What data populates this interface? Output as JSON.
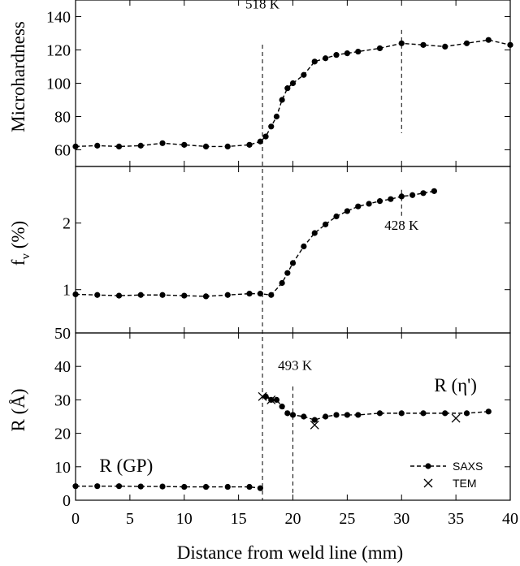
{
  "chart_data": {
    "type": "line",
    "xlabel": "Distance from weld line (mm)",
    "xlim": [
      0,
      40
    ],
    "xticks": [
      0,
      5,
      10,
      15,
      20,
      25,
      30,
      35,
      40
    ],
    "panels": [
      {
        "id": "hardness",
        "ylabel": "Microhardness",
        "ylim": [
          50,
          150
        ],
        "yticks": [
          60,
          80,
          100,
          120,
          140
        ],
        "series": [
          {
            "marker": "circle",
            "x": [
              0,
              2,
              4,
              6,
              8,
              10,
              12,
              14,
              16,
              17,
              17.5,
              18,
              18.5,
              19,
              19.5,
              20,
              21,
              22,
              23,
              24,
              25,
              26,
              28,
              30,
              32,
              34,
              36,
              38,
              40
            ],
            "y": [
              62,
              62.5,
              62,
              62.5,
              64,
              63,
              62,
              62,
              63,
              65,
              68,
              74,
              80,
              90,
              97,
              100,
              105,
              113,
              115,
              117,
              118,
              119,
              121,
              124,
              123,
              122,
              124,
              126,
              123
            ]
          }
        ]
      },
      {
        "id": "fraction",
        "ylabel": "f",
        "ylabel_sub": "v",
        "ylabel_suffix": " (%)",
        "ylim": [
          0.35,
          2.85
        ],
        "yticks": [
          1,
          2
        ],
        "series": [
          {
            "marker": "circle",
            "x": [
              0,
              2,
              4,
              6,
              8,
              10,
              12,
              14,
              16,
              17,
              18,
              19,
              19.5,
              20,
              21,
              22,
              23,
              24,
              25,
              26,
              27,
              28,
              29,
              30,
              31,
              32,
              33
            ],
            "y": [
              0.93,
              0.92,
              0.91,
              0.92,
              0.92,
              0.91,
              0.9,
              0.92,
              0.94,
              0.94,
              0.92,
              1.1,
              1.25,
              1.4,
              1.65,
              1.85,
              1.98,
              2.1,
              2.18,
              2.25,
              2.29,
              2.33,
              2.36,
              2.4,
              2.42,
              2.45,
              2.48
            ]
          }
        ]
      },
      {
        "id": "radius",
        "ylabel": "R (Å)",
        "ylim": [
          0,
          50
        ],
        "yticks": [
          0,
          10,
          20,
          30,
          40,
          50
        ],
        "series": [
          {
            "name": "SAXS",
            "marker": "circle",
            "segments": [
              {
                "x": [
                  0,
                  2,
                  4,
                  6,
                  8,
                  10,
                  12,
                  14,
                  16,
                  17
                ],
                "y": [
                  4.2,
                  4.2,
                  4.2,
                  4.1,
                  4.1,
                  4.0,
                  4.0,
                  4.0,
                  4.0,
                  3.6
                ]
              },
              {
                "x": [
                  17.5,
                  18,
                  18.5,
                  19,
                  19.5,
                  20,
                  21,
                  22,
                  23,
                  24,
                  25,
                  26,
                  28,
                  30,
                  32,
                  34,
                  36,
                  38
                ],
                "y": [
                  31,
                  30,
                  30,
                  28,
                  26,
                  25.5,
                  25,
                  24,
                  25,
                  25.5,
                  25.5,
                  25.5,
                  26,
                  26,
                  26,
                  26,
                  26,
                  26.5
                ]
              }
            ]
          },
          {
            "name": "TEM",
            "marker": "x",
            "x": [
              17.2,
              18,
              22,
              35
            ],
            "y": [
              31,
              30,
              22.5,
              24.5
            ]
          }
        ]
      }
    ],
    "vlines": [
      {
        "x": 17.2,
        "panels": [
          "hardness",
          "fraction",
          "radius"
        ]
      },
      {
        "x": 30,
        "panel": "hardness",
        "ymin": 70,
        "ymax": 132
      },
      {
        "x": 30,
        "panel": "fraction",
        "ymin": 2.1,
        "ymax": 2.5
      },
      {
        "x": 20,
        "panel": "radius",
        "ymin": 0,
        "ymax": 34
      }
    ],
    "annotations": [
      {
        "text": "518 K",
        "panel": "hardness",
        "x": 17.2,
        "y": 145,
        "anchor": "middle"
      },
      {
        "text": "428 K",
        "panel": "fraction",
        "x": 30,
        "y": 1.9,
        "anchor": "middle"
      },
      {
        "text": "493 K",
        "panel": "radius",
        "x": 20.2,
        "y": 39,
        "anchor": "middle"
      },
      {
        "text": "R (GP)",
        "panel": "radius",
        "x": 2.2,
        "y": 8.5,
        "anchor": "start",
        "size": "big"
      },
      {
        "text": "R (η')",
        "panel": "radius",
        "x": 33,
        "y": 32.5,
        "anchor": "start",
        "size": "big"
      }
    ],
    "legend": {
      "position": "bottom-right",
      "entries": [
        {
          "label": "SAXS",
          "marker": "circle"
        },
        {
          "label": "TEM",
          "marker": "x"
        }
      ]
    }
  }
}
